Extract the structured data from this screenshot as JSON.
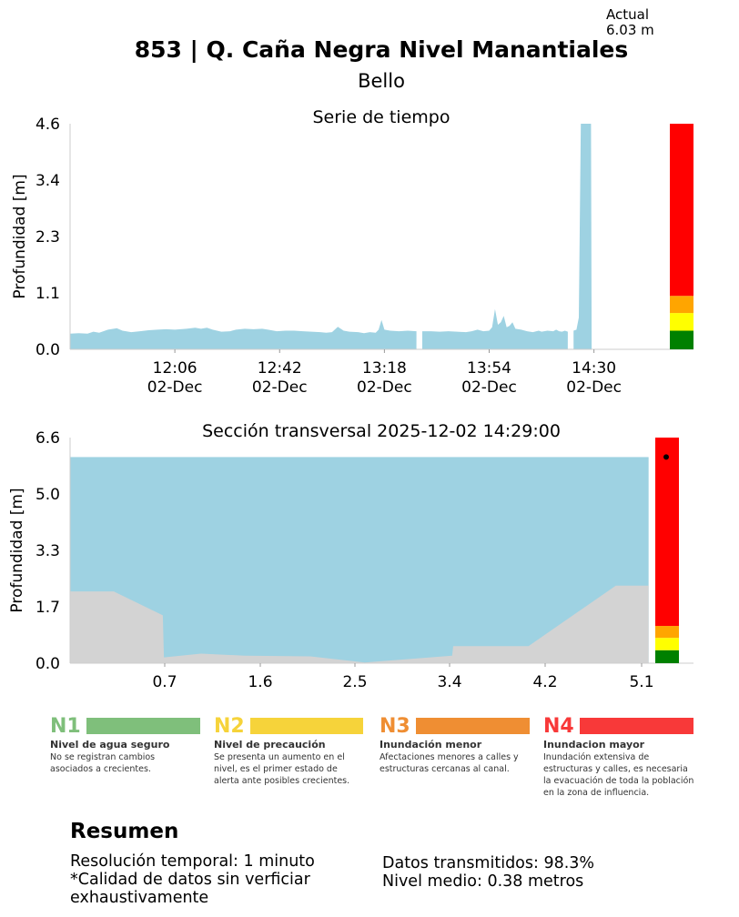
{
  "header": {
    "actual_label": "Actual",
    "actual_value": "6.03 m",
    "title": "853 | Q. Caña Negra Nivel Manantiales",
    "subtitle": "Bello"
  },
  "chart_data": [
    {
      "type": "area",
      "title": "Serie de tiempo",
      "ylabel": "Profundidad [m]",
      "ylim": [
        0,
        4.6
      ],
      "yticks": [
        "0.0",
        "1.1",
        "2.3",
        "3.4",
        "4.6"
      ],
      "xticks": [
        {
          "time": "12:06",
          "date": "02-Dec",
          "t": 36
        },
        {
          "time": "12:42",
          "date": "02-Dec",
          "t": 72
        },
        {
          "time": "13:18",
          "date": "02-Dec",
          "t": 108
        },
        {
          "time": "13:54",
          "date": "02-Dec",
          "t": 144
        },
        {
          "time": "14:30",
          "date": "02-Dec",
          "t": 180
        }
      ],
      "xlim": [
        0,
        197
      ],
      "fill_color": "#9ed2e2",
      "series": [
        {
          "segments": [
            [
              [
                0,
                0.32
              ],
              [
                3,
                0.33
              ],
              [
                6,
                0.32
              ],
              [
                8,
                0.36
              ],
              [
                10,
                0.34
              ],
              [
                13,
                0.4
              ],
              [
                16,
                0.43
              ],
              [
                18,
                0.38
              ],
              [
                21,
                0.35
              ],
              [
                24,
                0.37
              ],
              [
                27,
                0.39
              ],
              [
                30,
                0.4
              ],
              [
                33,
                0.41
              ],
              [
                36,
                0.4
              ],
              [
                40,
                0.42
              ],
              [
                43,
                0.44
              ],
              [
                45,
                0.42
              ],
              [
                47,
                0.44
              ],
              [
                49,
                0.4
              ],
              [
                52,
                0.36
              ],
              [
                55,
                0.37
              ],
              [
                57,
                0.4
              ],
              [
                60,
                0.42
              ],
              [
                63,
                0.41
              ],
              [
                66,
                0.42
              ],
              [
                68,
                0.4
              ],
              [
                71,
                0.37
              ],
              [
                74,
                0.38
              ],
              [
                77,
                0.38
              ],
              [
                80,
                0.37
              ],
              [
                83,
                0.36
              ],
              [
                86,
                0.35
              ],
              [
                88,
                0.34
              ],
              [
                90,
                0.35
              ],
              [
                92,
                0.46
              ],
              [
                94,
                0.38
              ],
              [
                96,
                0.36
              ],
              [
                99,
                0.35
              ],
              [
                101,
                0.33
              ],
              [
                103,
                0.35
              ],
              [
                105,
                0.34
              ],
              [
                106,
                0.4
              ],
              [
                107,
                0.6
              ],
              [
                108,
                0.4
              ],
              [
                110,
                0.38
              ],
              [
                113,
                0.37
              ],
              [
                116,
                0.38
              ],
              [
                119,
                0.37
              ]
            ],
            [
              [
                121,
                0.37
              ],
              [
                124,
                0.37
              ],
              [
                127,
                0.36
              ],
              [
                130,
                0.37
              ],
              [
                133,
                0.36
              ],
              [
                136,
                0.35
              ],
              [
                138,
                0.37
              ],
              [
                140,
                0.4
              ],
              [
                142,
                0.37
              ],
              [
                144,
                0.38
              ],
              [
                145,
                0.45
              ],
              [
                146,
                0.82
              ],
              [
                147,
                0.5
              ],
              [
                148,
                0.55
              ],
              [
                149,
                0.68
              ],
              [
                150,
                0.45
              ],
              [
                151,
                0.48
              ],
              [
                152,
                0.55
              ],
              [
                153,
                0.42
              ],
              [
                155,
                0.4
              ],
              [
                157,
                0.37
              ],
              [
                159,
                0.35
              ],
              [
                161,
                0.38
              ],
              [
                162,
                0.36
              ],
              [
                164,
                0.38
              ],
              [
                166,
                0.37
              ],
              [
                167,
                0.4
              ],
              [
                168,
                0.37
              ],
              [
                169,
                0.36
              ],
              [
                170,
                0.38
              ],
              [
                171,
                0.36
              ]
            ],
            [
              [
                173,
                0.38
              ],
              [
                174,
                0.4
              ],
              [
                174.8,
                0.65
              ],
              [
                175.5,
                4.6
              ],
              [
                179,
                4.6
              ],
              [
                179.2,
                0
              ]
            ]
          ]
        }
      ],
      "alert_levels": [
        {
          "level": "N1",
          "from": 0,
          "to": 0.38,
          "color": "#008000"
        },
        {
          "level": "N2",
          "from": 0.38,
          "to": 0.74,
          "color": "#ffff00"
        },
        {
          "level": "N3",
          "from": 0.74,
          "to": 1.09,
          "color": "#ffa500"
        },
        {
          "level": "N4",
          "from": 1.09,
          "to": 4.6,
          "color": "#ff0000"
        }
      ]
    },
    {
      "type": "area",
      "title": "Sección transversal 2025-12-02 14:29:00",
      "ylabel": "Profundidad [m]",
      "ylim": [
        0,
        6.6
      ],
      "yticks": [
        "0.0",
        "1.7",
        "3.3",
        "5.0",
        "6.6"
      ],
      "xticks": [
        0.7,
        1.6,
        2.5,
        3.4,
        4.2,
        5.1
      ],
      "xlim": [
        -0.2,
        5.4
      ],
      "water_level": 6.03,
      "water_color": "#9ed2e2",
      "ground_color": "#d3d3d3",
      "ground_profile": [
        [
          0,
          2.1
        ],
        [
          0.2,
          2.1
        ],
        [
          0.65,
          1.4
        ],
        [
          0.66,
          0.17
        ],
        [
          1.0,
          0.28
        ],
        [
          1.4,
          0.22
        ],
        [
          2.0,
          0.2
        ],
        [
          2.5,
          0.02
        ],
        [
          3.3,
          0.22
        ],
        [
          3.31,
          0.5
        ],
        [
          4.0,
          0.5
        ],
        [
          4.8,
          2.27
        ],
        [
          5.1,
          2.27
        ]
      ],
      "current_marker": 6.03,
      "alert_levels": [
        {
          "level": "N1",
          "from": 0,
          "to": 0.38,
          "color": "#008000"
        },
        {
          "level": "N2",
          "from": 0.38,
          "to": 0.74,
          "color": "#ffff00"
        },
        {
          "level": "N3",
          "from": 0.74,
          "to": 1.09,
          "color": "#ffa500"
        },
        {
          "level": "N4",
          "from": 1.09,
          "to": 6.6,
          "color": "#ff0000"
        }
      ]
    }
  ],
  "legend": [
    {
      "code": "N1",
      "color": "#7fbf7b",
      "name": "Nivel de agua seguro",
      "desc": "No se registran cambios asociados a crecientes."
    },
    {
      "code": "N2",
      "color": "#f6d33a",
      "name": "Nivel de precaución",
      "desc": "Se presenta un aumento en el nivel, es el primer estado de alerta ante posibles crecientes."
    },
    {
      "code": "N3",
      "color": "#ef8e33",
      "name": "Inundación menor",
      "desc": "Afectaciones menores a calles y estructuras cercanas al canal."
    },
    {
      "code": "N4",
      "color": "#f83939",
      "name": "Inundacion mayor",
      "desc": "Inundación extensiva de estructuras y calles, es necesaria la evacuación de toda la población en la zona de influencia."
    }
  ],
  "summary": {
    "title": "Resumen",
    "resolution": "Resolución temporal: 1 minuto",
    "quality_note": "*Calidad de datos sin verficiar exhaustivamente",
    "transmitted": "Datos transmitidos: 98.3%",
    "mean_level": "Nivel medio: 0.38 metros"
  }
}
